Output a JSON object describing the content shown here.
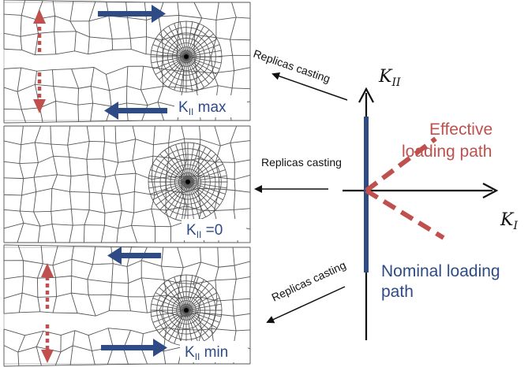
{
  "panels": {
    "top_label_main": "K",
    "top_label_sub": "II",
    "top_label_suffix": " max",
    "mid_label_main": "K",
    "mid_label_sub": "II",
    "mid_label_suffix": " =0",
    "bot_label_main": "K",
    "bot_label_sub": "II",
    "bot_label_suffix": " min"
  },
  "casting": {
    "top": "Replicas casting",
    "middle": "Replicas casting",
    "bottom": "Replicas casting"
  },
  "axes": {
    "y_main": "K",
    "y_sub": "II",
    "x_main": "K",
    "x_sub": "I"
  },
  "paths": {
    "effective_line1": "Effective",
    "effective_line2": "loading path",
    "nominal_line1": "Nominal loading",
    "nominal_line2": "path"
  },
  "colors": {
    "blue": "#2e4b85",
    "red": "#c0504d",
    "dark": "#111111"
  }
}
